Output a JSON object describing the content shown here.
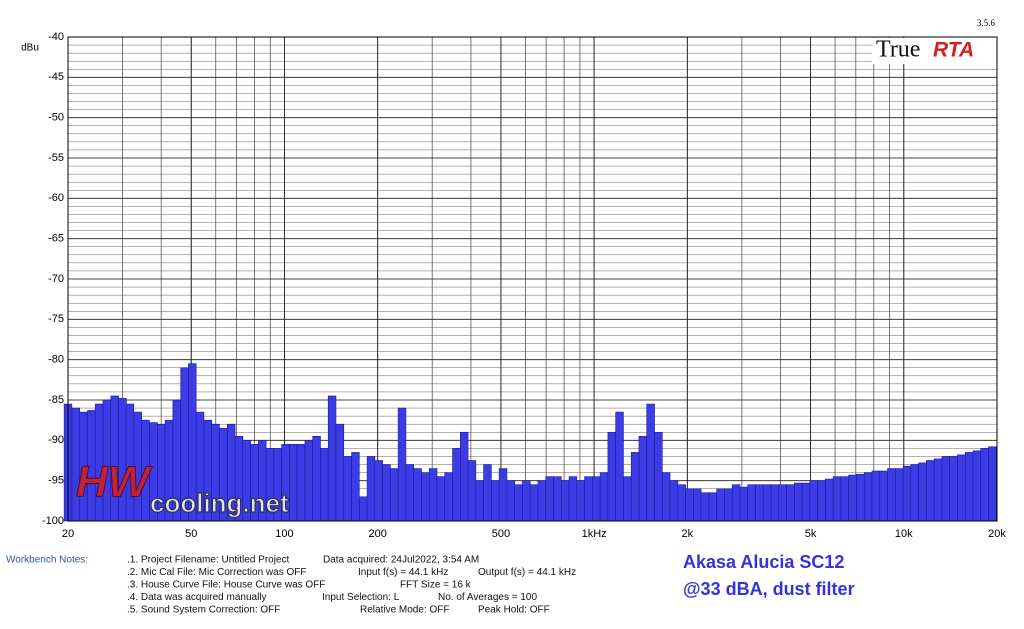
{
  "chart_data": {
    "type": "bar",
    "y_label": "dBu",
    "log_x": true,
    "grid": true,
    "color": "#3c3ce6",
    "xlim": [
      20,
      20000
    ],
    "ylim": [
      -100,
      -40
    ],
    "xticks": [
      20,
      50,
      100,
      200,
      500,
      {
        "value": 1000,
        "label": "1kHz"
      },
      {
        "value": 2000,
        "label": "2k"
      },
      {
        "value": 5000,
        "label": "5k"
      },
      {
        "value": 10000,
        "label": "10k"
      },
      {
        "value": 20000,
        "label": "20k"
      }
    ],
    "yticks": [
      -40,
      -45,
      -50,
      -55,
      -60,
      -65,
      -70,
      -75,
      -80,
      -85,
      -90,
      -95,
      -100
    ],
    "x": [
      20.0,
      21.2,
      22.4,
      23.8,
      25.2,
      26.7,
      28.3,
      30.0,
      31.7,
      33.6,
      35.6,
      37.8,
      40.0,
      42.4,
      44.9,
      47.6,
      50.4,
      53.4,
      56.6,
      59.9,
      63.5,
      67.3,
      71.3,
      75.5,
      80.0,
      84.8,
      89.8,
      95.1,
      100.8,
      106.8,
      113.1,
      119.9,
      127.0,
      134.5,
      142.5,
      151.0,
      160.0,
      169.5,
      179.6,
      190.3,
      201.6,
      213.6,
      226.3,
      239.7,
      254.0,
      269.1,
      285.1,
      302.1,
      320.0,
      339.0,
      359.2,
      380.6,
      403.2,
      427.2,
      452.5,
      479.5,
      508.0,
      538.2,
      570.2,
      604.1,
      640.0,
      678.1,
      718.4,
      761.1,
      806.4,
      854.3,
      905.1,
      958.9,
      1015.9,
      1076.3,
      1140.3,
      1208.2,
      1280.0,
      1356.1,
      1436.8,
      1522.2,
      1612.7,
      1708.6,
      1810.2,
      1917.9,
      2032.0,
      2152.8,
      2280.9,
      2416.5,
      2560.0,
      2712.2,
      2873.5,
      3044.4,
      3225.4,
      3417.2,
      3620.4,
      3835.7,
      4063.9,
      4305.5,
      4561.5,
      4832.8,
      5120.0,
      5424.5,
      5747.0,
      6088.8,
      6450.8,
      6834.4,
      7240.8,
      7671.4,
      8127.6,
      8610.9,
      9122.9,
      9665.4,
      10240,
      10849,
      11494,
      12177,
      12902,
      13669,
      14482,
      15343,
      16255,
      17222,
      18246,
      19331
    ],
    "values": [
      -85.5,
      -86,
      -86.5,
      -86.3,
      -85.5,
      -85,
      -84.5,
      -84.8,
      -85.5,
      -86.5,
      -87.5,
      -87.8,
      -88,
      -87.5,
      -85,
      -81,
      -80.5,
      -86.5,
      -87.5,
      -88,
      -88.5,
      -88,
      -89.5,
      -90,
      -90.5,
      -90,
      -91,
      -91,
      -90.5,
      -90.5,
      -90.5,
      -90,
      -89.5,
      -91,
      -84.5,
      -88,
      -92,
      -91.5,
      -97,
      -92,
      -92.5,
      -93,
      -93.5,
      -86,
      -93,
      -93.5,
      -94,
      -93.5,
      -94.5,
      -94,
      -91,
      -89,
      -92.5,
      -95,
      -93,
      -95,
      -93.5,
      -95,
      -95.5,
      -95,
      -95.5,
      -95,
      -94.5,
      -94.5,
      -95,
      -94.5,
      -95,
      -94.5,
      -94.5,
      -94,
      -89,
      -86.5,
      -94.5,
      -91.5,
      -89.5,
      -85.5,
      -89,
      -94,
      -95,
      -95.5,
      -96,
      -96,
      -96.5,
      -96.5,
      -96,
      -96,
      -95.5,
      -95.8,
      -95.5,
      -95.5,
      -95.5,
      -95.5,
      -95.5,
      -95.5,
      -95.3,
      -95.3,
      -95,
      -95,
      -94.8,
      -94.5,
      -94.5,
      -94.3,
      -94.2,
      -94,
      -93.8,
      -93.8,
      -93.5,
      -93.5,
      -93.2,
      -93,
      -92.8,
      -92.5,
      -92.3,
      -92,
      -92,
      -91.8,
      -91.5,
      -91.3,
      -91,
      -90.8
    ]
  },
  "version": "3.5.6",
  "logo": {
    "true": "True",
    "rta": "RTA"
  },
  "watermark": {
    "hw": "HW",
    "site": "cooling.net"
  },
  "notes": {
    "label": "Workbench Notes:",
    "rows": [
      [
        ".1. Project Filename: Untitled Project",
        "Data acquired: 24Jul2022, 3:54 AM"
      ],
      [
        ".2. Mic Cal File: Mic Correction was OFF",
        "Input f(s) = 44.1 kHz",
        "Output f(s) = 44.1 kHz"
      ],
      [
        ".3. House Curve File: House Curve was OFF",
        "FFT Size = 16 k"
      ],
      [
        ".4. Data was acquired manually",
        "Input Selection: L",
        "No. of Averages = 100"
      ],
      [
        ".5. Sound System Correction: OFF",
        "Relative Mode:  OFF",
        "Peak Hold: OFF"
      ]
    ]
  },
  "caption": [
    "Akasa Alucia SC12",
    "@33 dBA, dust filter"
  ]
}
